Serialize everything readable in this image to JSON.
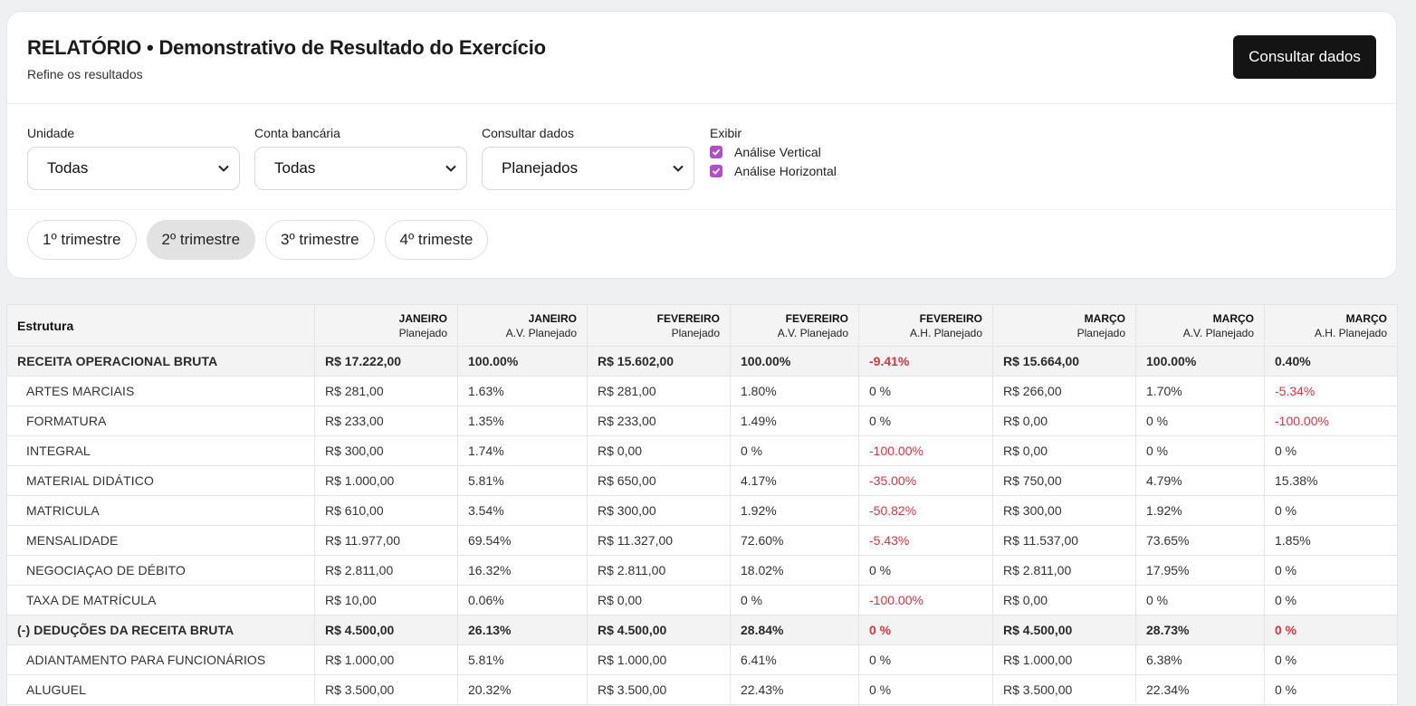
{
  "header": {
    "title": "RELATÓRIO • Demonstrativo de Resultado do Exercício",
    "subtitle": "Refine os resultados",
    "action_label": "Consultar dados"
  },
  "filters": {
    "unidade": {
      "label": "Unidade",
      "value": "Todas"
    },
    "conta": {
      "label": "Conta bancária",
      "value": "Todas"
    },
    "consultar": {
      "label": "Consultar dados",
      "value": "Planejados"
    },
    "exibir": {
      "label": "Exibir",
      "options": [
        {
          "label": "Análise Vertical",
          "checked": true
        },
        {
          "label": "Análise Horizontal",
          "checked": true
        }
      ]
    }
  },
  "quarters": [
    {
      "label": "1º trimestre",
      "active": false
    },
    {
      "label": "2º trimestre",
      "active": true
    },
    {
      "label": "3º trimestre",
      "active": false
    },
    {
      "label": "4º trimeste",
      "active": false
    }
  ],
  "accent_color": "#b04fc6",
  "negative_color": "#e0323e",
  "table": {
    "first_header": "Estrutura",
    "columns": [
      {
        "top": "JANEIRO",
        "sub": "Planejado"
      },
      {
        "top": "JANEIRO",
        "sub": "A.V. Planejado"
      },
      {
        "top": "FEVEREIRO",
        "sub": "Planejado"
      },
      {
        "top": "FEVEREIRO",
        "sub": "A.V. Planejado"
      },
      {
        "top": "FEVEREIRO",
        "sub": "A.H. Planejado"
      },
      {
        "top": "MARÇO",
        "sub": "Planejado"
      },
      {
        "top": "MARÇO",
        "sub": "A.V. Planejado"
      },
      {
        "top": "MARÇO",
        "sub": "A.H. Planejado"
      }
    ],
    "rows": [
      {
        "label": "RECEITA OPERACIONAL BRUTA",
        "group": true,
        "cells": [
          {
            "v": "R$ 17.222,00"
          },
          {
            "v": "100.00%"
          },
          {
            "v": "R$ 15.602,00"
          },
          {
            "v": "100.00%"
          },
          {
            "v": "-9.41%",
            "neg": true
          },
          {
            "v": "R$ 15.664,00"
          },
          {
            "v": "100.00%"
          },
          {
            "v": "0.40%"
          }
        ]
      },
      {
        "label": "ARTES MARCIAIS",
        "cells": [
          {
            "v": "R$ 281,00"
          },
          {
            "v": "1.63%"
          },
          {
            "v": "R$ 281,00"
          },
          {
            "v": "1.80%"
          },
          {
            "v": "0 %"
          },
          {
            "v": "R$ 266,00"
          },
          {
            "v": "1.70%"
          },
          {
            "v": "-5.34%",
            "neg": true
          }
        ]
      },
      {
        "label": "FORMATURA",
        "cells": [
          {
            "v": "R$ 233,00"
          },
          {
            "v": "1.35%"
          },
          {
            "v": "R$ 233,00"
          },
          {
            "v": "1.49%"
          },
          {
            "v": "0 %"
          },
          {
            "v": "R$ 0,00"
          },
          {
            "v": "0 %"
          },
          {
            "v": "-100.00%",
            "neg": true
          }
        ]
      },
      {
        "label": "INTEGRAL",
        "cells": [
          {
            "v": "R$ 300,00"
          },
          {
            "v": "1.74%"
          },
          {
            "v": "R$ 0,00"
          },
          {
            "v": "0 %"
          },
          {
            "v": "-100.00%",
            "neg": true
          },
          {
            "v": "R$ 0,00"
          },
          {
            "v": "0 %"
          },
          {
            "v": "0 %"
          }
        ]
      },
      {
        "label": "MATERIAL DIDÁTICO",
        "cells": [
          {
            "v": "R$ 1.000,00"
          },
          {
            "v": "5.81%"
          },
          {
            "v": "R$ 650,00"
          },
          {
            "v": "4.17%"
          },
          {
            "v": "-35.00%",
            "neg": true
          },
          {
            "v": "R$ 750,00"
          },
          {
            "v": "4.79%"
          },
          {
            "v": "15.38%"
          }
        ]
      },
      {
        "label": "MATRICULA",
        "cells": [
          {
            "v": "R$ 610,00"
          },
          {
            "v": "3.54%"
          },
          {
            "v": "R$ 300,00"
          },
          {
            "v": "1.92%"
          },
          {
            "v": "-50.82%",
            "neg": true
          },
          {
            "v": "R$ 300,00"
          },
          {
            "v": "1.92%"
          },
          {
            "v": "0 %"
          }
        ]
      },
      {
        "label": "MENSALIDADE",
        "cells": [
          {
            "v": "R$ 11.977,00"
          },
          {
            "v": "69.54%"
          },
          {
            "v": "R$ 11.327,00"
          },
          {
            "v": "72.60%"
          },
          {
            "v": "-5.43%",
            "neg": true
          },
          {
            "v": "R$ 11.537,00"
          },
          {
            "v": "73.65%"
          },
          {
            "v": "1.85%"
          }
        ]
      },
      {
        "label": "NEGOCIAÇAO DE DÉBITO",
        "cells": [
          {
            "v": "R$ 2.811,00"
          },
          {
            "v": "16.32%"
          },
          {
            "v": "R$ 2.811,00"
          },
          {
            "v": "18.02%"
          },
          {
            "v": "0 %"
          },
          {
            "v": "R$ 2.811,00"
          },
          {
            "v": "17.95%"
          },
          {
            "v": "0 %"
          }
        ]
      },
      {
        "label": "TAXA DE MATRÍCULA",
        "cells": [
          {
            "v": "R$ 10,00"
          },
          {
            "v": "0.06%"
          },
          {
            "v": "R$ 0,00"
          },
          {
            "v": "0 %"
          },
          {
            "v": "-100.00%",
            "neg": true
          },
          {
            "v": "R$ 0,00"
          },
          {
            "v": "0 %"
          },
          {
            "v": "0 %"
          }
        ]
      },
      {
        "label": "(-) DEDUÇÕES DA RECEITA BRUTA",
        "group": true,
        "cells": [
          {
            "v": "R$ 4.500,00"
          },
          {
            "v": "26.13%"
          },
          {
            "v": "R$ 4.500,00"
          },
          {
            "v": "28.84%"
          },
          {
            "v": "0 %",
            "neg": true
          },
          {
            "v": "R$ 4.500,00"
          },
          {
            "v": "28.73%"
          },
          {
            "v": "0 %",
            "neg": true
          }
        ]
      },
      {
        "label": "ADIANTAMENTO PARA FUNCIONÁRIOS",
        "cells": [
          {
            "v": "R$ 1.000,00"
          },
          {
            "v": "5.81%"
          },
          {
            "v": "R$ 1.000,00"
          },
          {
            "v": "6.41%"
          },
          {
            "v": "0 %"
          },
          {
            "v": "R$ 1.000,00"
          },
          {
            "v": "6.38%"
          },
          {
            "v": "0 %"
          }
        ]
      },
      {
        "label": "ALUGUEL",
        "cells": [
          {
            "v": "R$ 3.500,00"
          },
          {
            "v": "20.32%"
          },
          {
            "v": "R$ 3.500,00"
          },
          {
            "v": "22.43%"
          },
          {
            "v": "0 %"
          },
          {
            "v": "R$ 3.500,00"
          },
          {
            "v": "22.34%"
          },
          {
            "v": "0 %"
          }
        ]
      }
    ]
  }
}
